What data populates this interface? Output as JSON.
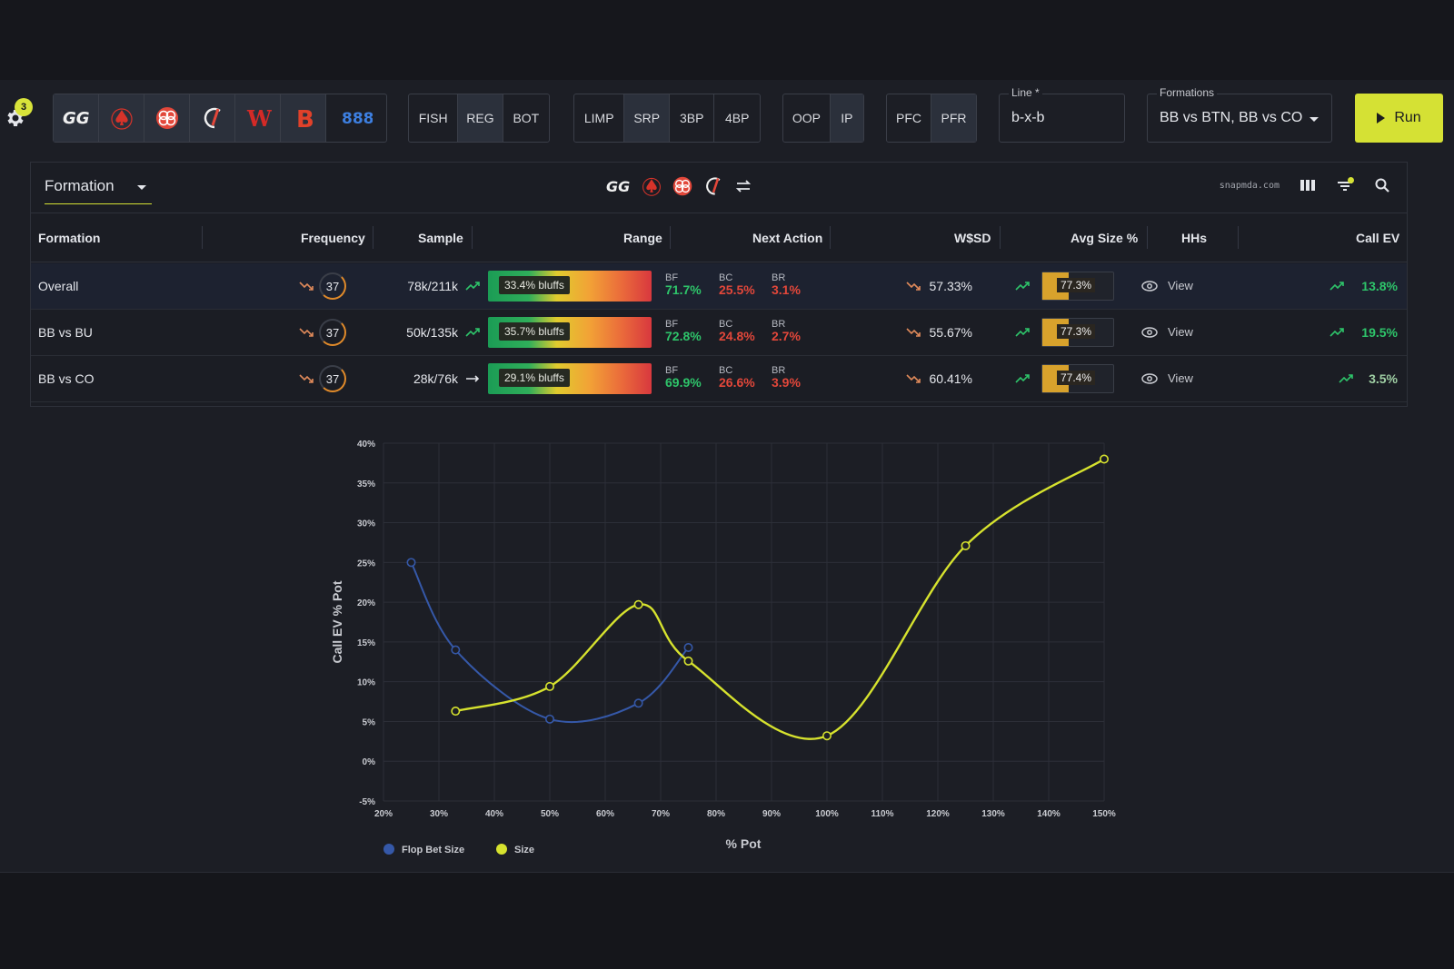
{
  "settings": {
    "badge": "3"
  },
  "sites": [
    "GG",
    "PokerStars",
    "iPoker",
    "Chico",
    "Winamax",
    "Bodog",
    "888"
  ],
  "player_types": [
    "FISH",
    "REG",
    "BOT"
  ],
  "pot_types": [
    "LIMP",
    "SRP",
    "3BP",
    "4BP"
  ],
  "positions": [
    "OOP",
    "IP"
  ],
  "roles": [
    "PFC",
    "PFR"
  ],
  "line": {
    "label": "Line *",
    "value": "b-x-b"
  },
  "formations": {
    "label": "Formations",
    "value": "BB vs BTN, BB vs CO"
  },
  "run_label": "Run",
  "panel": {
    "groupby": "Formation",
    "brand": "snapmda.com"
  },
  "columns": [
    "Formation",
    "Frequency",
    "Sample",
    "Range",
    "Next Action",
    "W$SD",
    "Avg Size %",
    "HHs",
    "Call EV"
  ],
  "rows": [
    {
      "name": "Overall",
      "freq": "37",
      "sample": "78k/211k",
      "range_label": "33.4% bluffs",
      "bf": "71.7%",
      "bc": "25.5%",
      "br": "3.1%",
      "wsd": "57.33%",
      "avg_label": "77.3%",
      "avg_fill": 0.37,
      "view": "View",
      "ev": "13.8%"
    },
    {
      "name": "BB vs BU",
      "freq": "37",
      "sample": "50k/135k",
      "range_label": "35.7% bluffs",
      "bf": "72.8%",
      "bc": "24.8%",
      "br": "2.7%",
      "wsd": "55.67%",
      "avg_label": "77.3%",
      "avg_fill": 0.37,
      "view": "View",
      "ev": "19.5%"
    },
    {
      "name": "BB vs CO",
      "freq": "37",
      "sample": "28k/76k",
      "range_label": "29.1% bluffs",
      "bf": "69.9%",
      "bc": "26.6%",
      "br": "3.9%",
      "wsd": "60.41%",
      "avg_label": "77.4%",
      "avg_fill": 0.37,
      "view": "View",
      "ev": "3.5%"
    }
  ],
  "next_action_labels": [
    "BF",
    "BC",
    "BR"
  ],
  "chart_data": {
    "type": "line",
    "xlabel": "% Pot",
    "ylabel": "Call EV % Pot",
    "xlim": [
      20,
      150
    ],
    "ylim": [
      -5,
      40
    ],
    "x_ticks": [
      "20%",
      "30%",
      "40%",
      "50%",
      "60%",
      "70%",
      "80%",
      "90%",
      "100%",
      "110%",
      "120%",
      "130%",
      "140%",
      "150%"
    ],
    "y_ticks": [
      "40%",
      "35%",
      "30%",
      "25%",
      "20%",
      "15%",
      "10%",
      "5%",
      "0%",
      "-5%"
    ],
    "grid": true,
    "legend_position": "bottom-left",
    "series": [
      {
        "name": "Flop Bet Size",
        "color": "#3558a8",
        "points": [
          [
            25,
            25
          ],
          [
            33,
            14
          ],
          [
            50,
            5.3
          ],
          [
            66,
            7.3
          ],
          [
            75,
            14.3
          ]
        ]
      },
      {
        "name": "Size",
        "color": "#d6e22e",
        "points": [
          [
            33,
            6.3
          ],
          [
            50,
            9.4
          ],
          [
            66,
            19.7
          ],
          [
            75,
            12.6
          ],
          [
            100,
            3.2
          ],
          [
            125,
            27.1
          ],
          [
            150,
            38
          ]
        ]
      }
    ]
  }
}
